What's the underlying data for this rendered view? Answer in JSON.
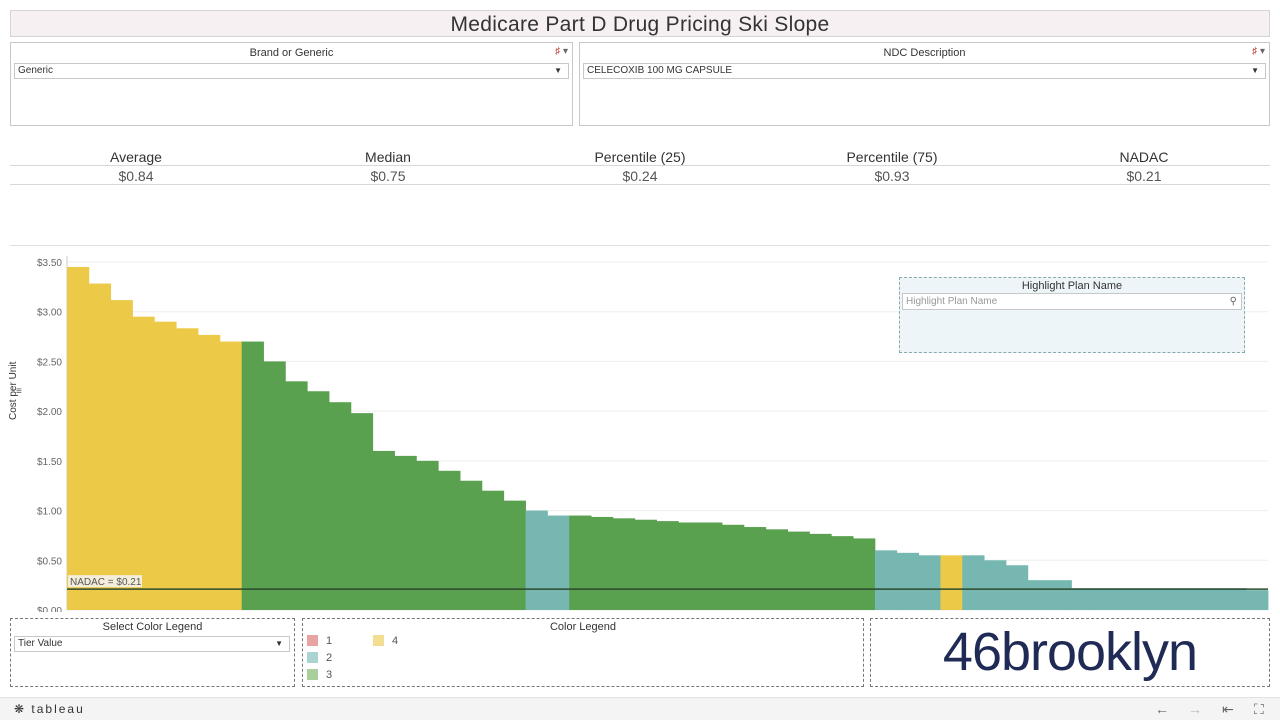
{
  "title": "Medicare Part D Drug Pricing Ski Slope",
  "filters": {
    "brand": {
      "title": "Brand or Generic",
      "value": "Generic"
    },
    "ndc": {
      "title": "NDC Description",
      "value": "CELECOXIB 100 MG CAPSULE"
    }
  },
  "kpis": [
    {
      "label": "Average",
      "value": "$0.84"
    },
    {
      "label": "Median",
      "value": "$0.75"
    },
    {
      "label": "Percentile (25)",
      "value": "$0.24"
    },
    {
      "label": "Percentile (75)",
      "value": "$0.93"
    },
    {
      "label": "NADAC",
      "value": "$0.21"
    }
  ],
  "highlight": {
    "title": "Highlight Plan Name",
    "placeholder": "Highlight Plan Name"
  },
  "color_select": {
    "title": "Select Color Legend",
    "value": "Tier Value"
  },
  "color_legend": {
    "title": "Color Legend",
    "items": [
      {
        "label": "1",
        "color": "#e8a3a3"
      },
      {
        "label": "2",
        "color": "#a9d4d0"
      },
      {
        "label": "3",
        "color": "#a8cf9c"
      },
      {
        "label": "4",
        "color": "#f2dd93"
      }
    ]
  },
  "logo_text": "46brooklyn",
  "footer": {
    "brand": "tableau"
  },
  "chart_data": {
    "type": "bar",
    "title": "",
    "xlabel": "",
    "ylabel": "Cost per Unit",
    "ylim": [
      0,
      3.5
    ],
    "y_ticks": [
      "$0.00",
      "$0.50",
      "$1.00",
      "$1.50",
      "$2.00",
      "$2.50",
      "$3.00",
      "$3.50"
    ],
    "reference_line": {
      "label": "NADAC = $0.21",
      "value": 0.21
    },
    "colors": {
      "1": "#e17474",
      "2": "#76b7b2",
      "3": "#59a14f",
      "4": "#edc948"
    },
    "series_profile": [
      {
        "tier": "4",
        "start": 3.45,
        "end": 2.95,
        "bars": 4
      },
      {
        "tier": "4",
        "start": 2.9,
        "end": 2.7,
        "bars": 4
      },
      {
        "tier": "3",
        "start": 2.7,
        "end": 2.3,
        "bars": 3
      },
      {
        "tier": "3",
        "start": 2.2,
        "end": 1.98,
        "bars": 3
      },
      {
        "tier": "3",
        "start": 1.6,
        "end": 1.5,
        "bars": 3
      },
      {
        "tier": "3",
        "start": 1.4,
        "end": 1.3,
        "bars": 2
      },
      {
        "tier": "3",
        "start": 1.2,
        "end": 1.1,
        "bars": 2
      },
      {
        "tier": "2",
        "start": 1.0,
        "end": 0.95,
        "bars": 2
      },
      {
        "tier": "3",
        "start": 0.95,
        "end": 0.88,
        "bars": 6
      },
      {
        "tier": "3",
        "start": 0.88,
        "end": 0.72,
        "bars": 8
      },
      {
        "tier": "2",
        "start": 0.6,
        "end": 0.55,
        "bars": 3
      },
      {
        "tier": "4",
        "start": 0.55,
        "end": 0.55,
        "bars": 1
      },
      {
        "tier": "2",
        "start": 0.55,
        "end": 0.45,
        "bars": 3
      },
      {
        "tier": "2",
        "start": 0.3,
        "end": 0.3,
        "bars": 2
      },
      {
        "tier": "2",
        "start": 0.22,
        "end": 0.22,
        "bars": 8
      },
      {
        "tier": "2",
        "start": 0.2,
        "end": 0.18,
        "bars": 1
      }
    ]
  }
}
